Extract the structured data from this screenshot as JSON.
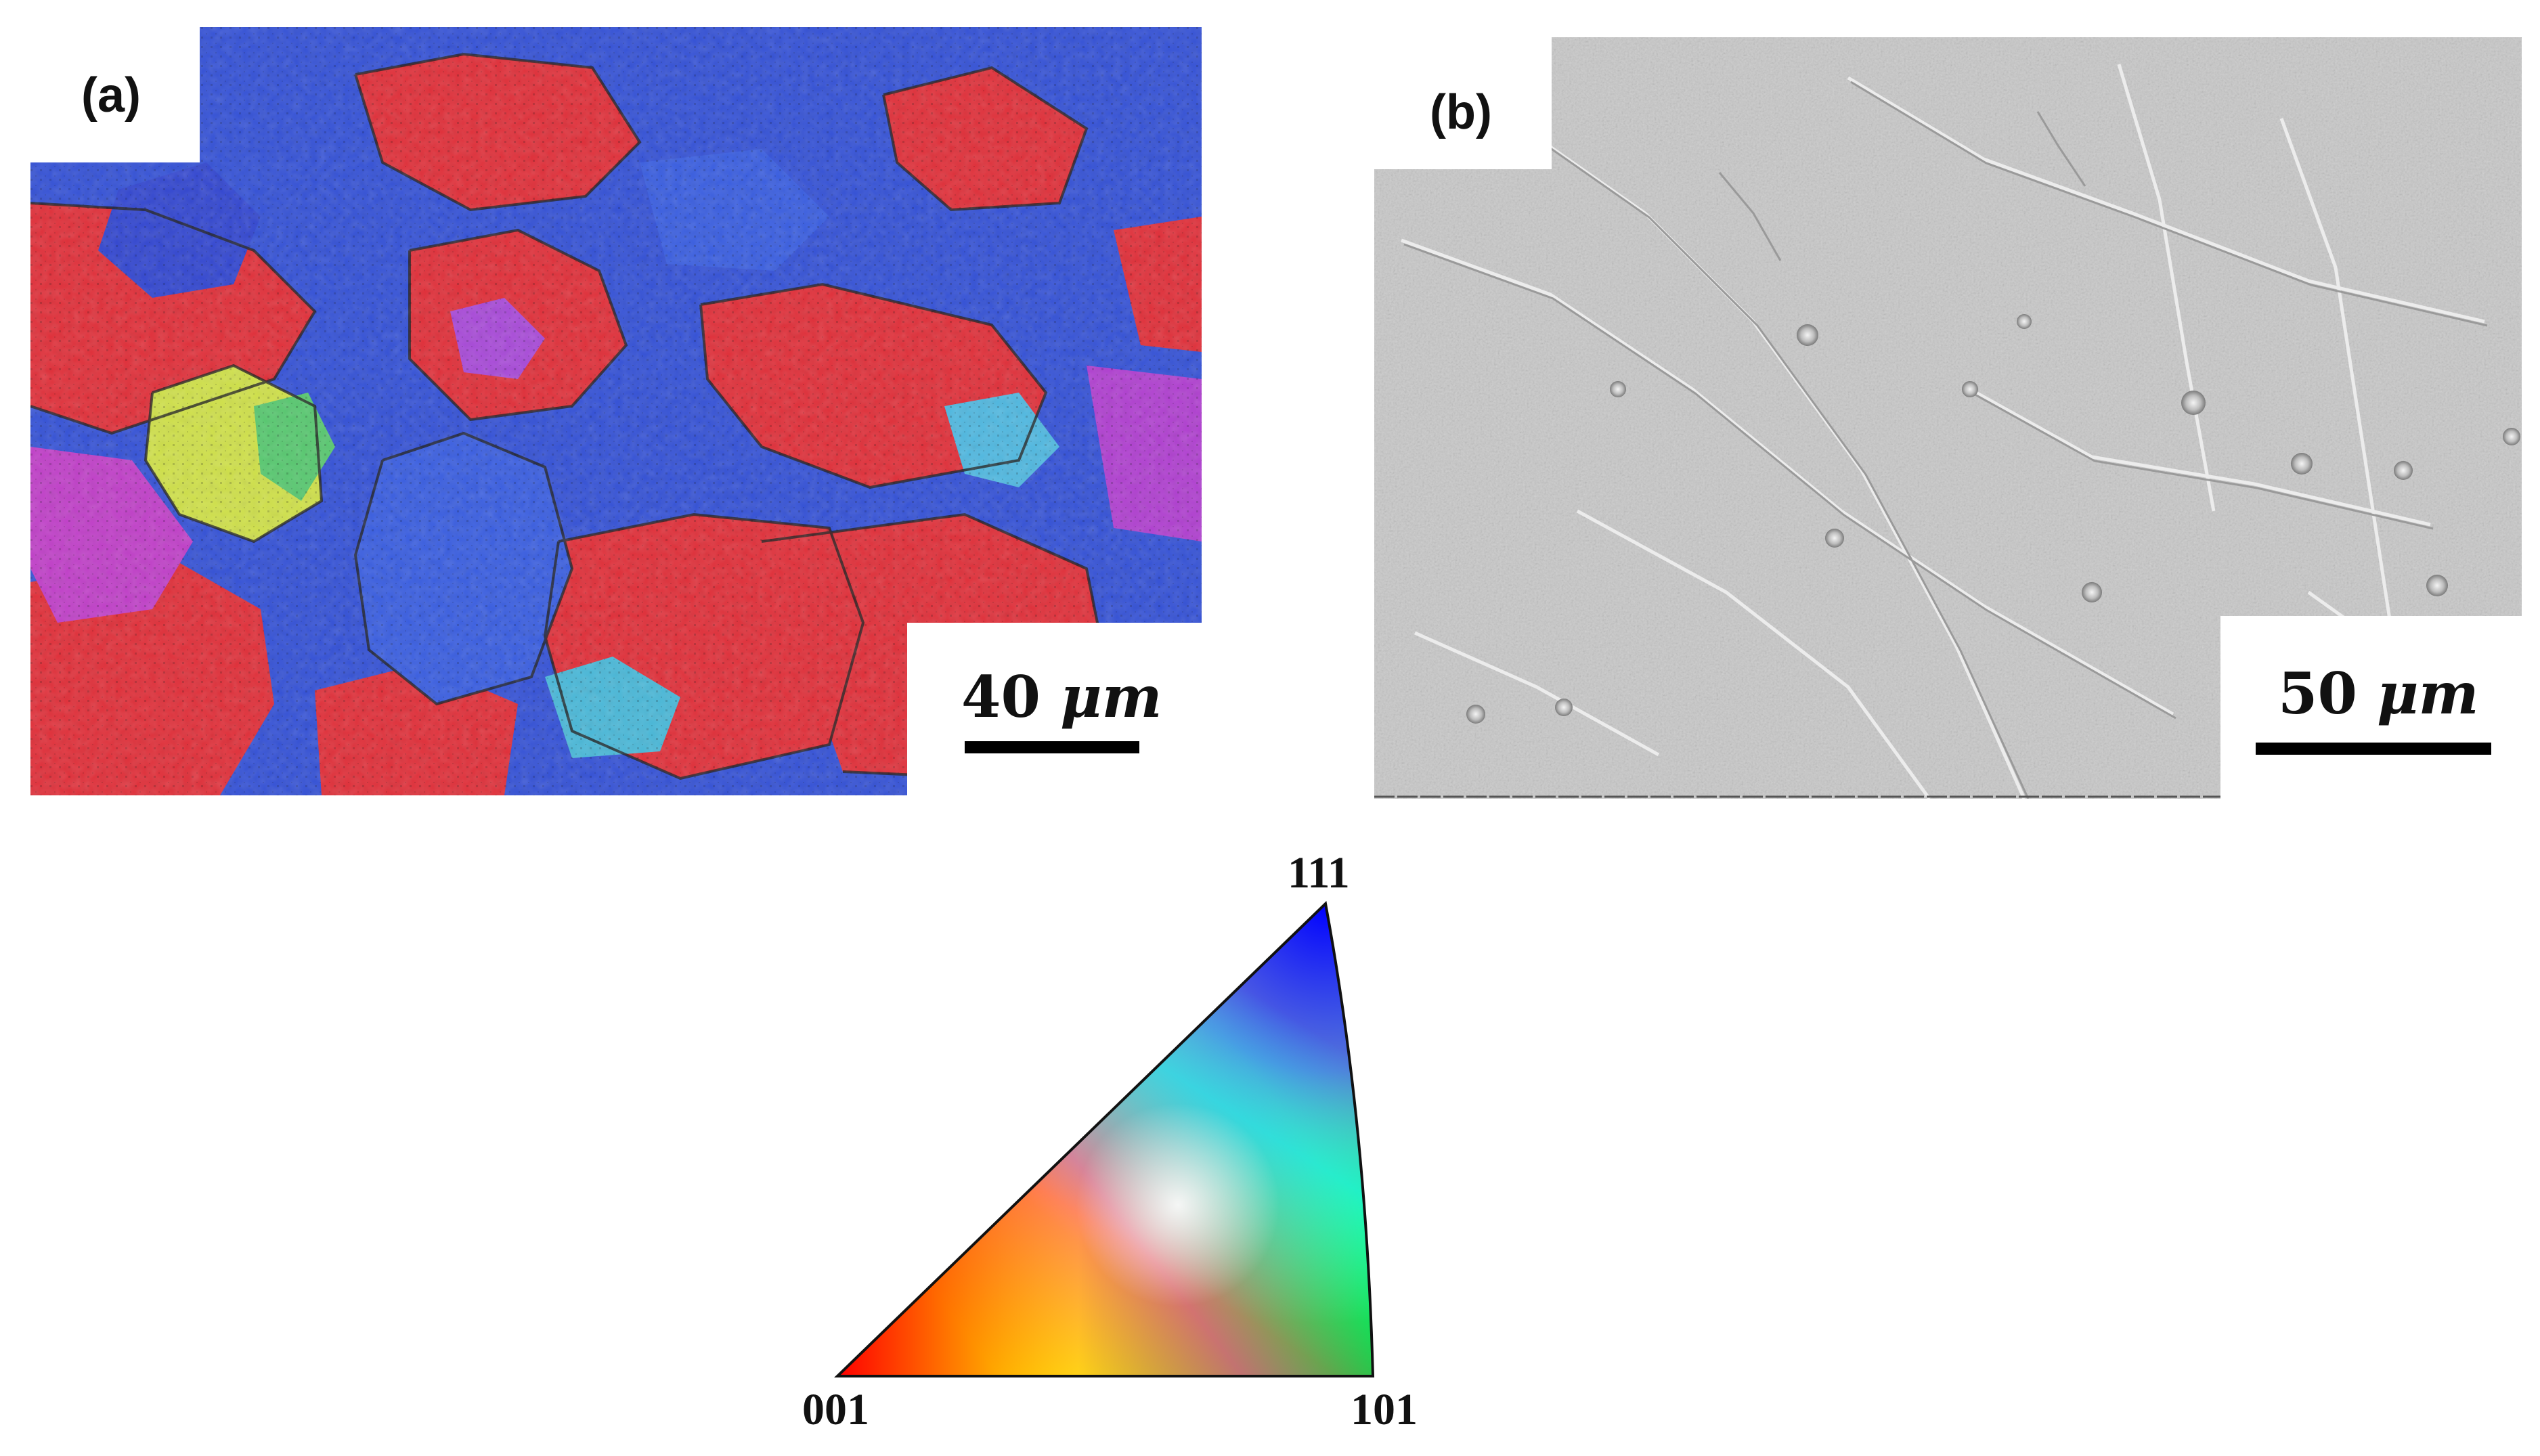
{
  "panel_a": {
    "label": "(a)",
    "scale_value": "40",
    "scale_unit": "μm",
    "colors": {
      "red": "#e0303a",
      "blue": "#3552d6",
      "magenta": "#c040c8",
      "yellow": "#d6e040",
      "green": "#40c060",
      "cyan": "#40b0d0",
      "boundary": "#222222"
    }
  },
  "panel_b": {
    "label": "(b)",
    "scale_value": "50",
    "scale_unit": "μm",
    "colors": {
      "base": "#c8c8c8",
      "light": "#e6e6e6",
      "dark": "#8a8a8a"
    }
  },
  "ipf_key": {
    "vertex_111": "111",
    "vertex_001": "001",
    "vertex_101": "101"
  }
}
